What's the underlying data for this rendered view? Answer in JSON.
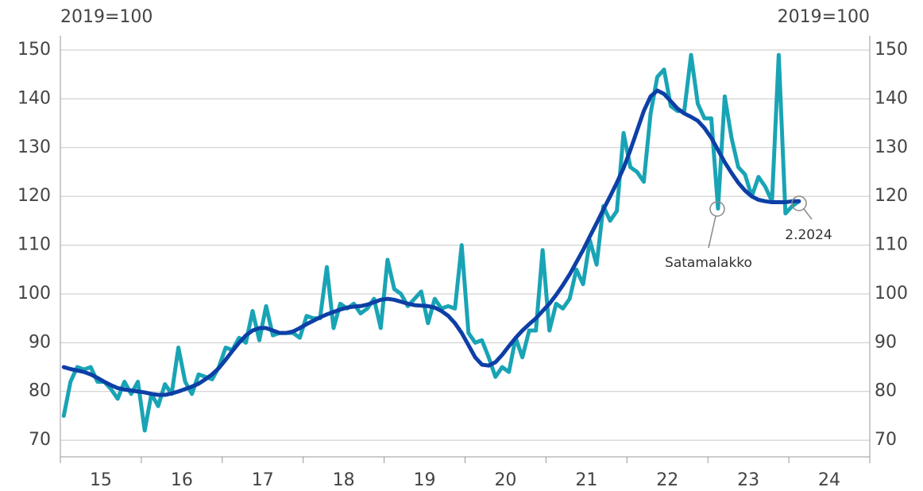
{
  "chart_data": {
    "type": "line",
    "y_axis_label": "2019=100",
    "y2_axis_label": "2019=100",
    "x": [
      15.042,
      15.125,
      15.208,
      15.292,
      15.375,
      15.458,
      15.542,
      15.625,
      15.708,
      15.792,
      15.875,
      15.958,
      16.042,
      16.125,
      16.208,
      16.292,
      16.375,
      16.458,
      16.542,
      16.625,
      16.708,
      16.792,
      16.875,
      16.958,
      17.042,
      17.125,
      17.208,
      17.292,
      17.375,
      17.458,
      17.542,
      17.625,
      17.708,
      17.792,
      17.875,
      17.958,
      18.042,
      18.125,
      18.208,
      18.292,
      18.375,
      18.458,
      18.542,
      18.625,
      18.708,
      18.792,
      18.875,
      18.958,
      19.042,
      19.125,
      19.208,
      19.292,
      19.375,
      19.458,
      19.542,
      19.625,
      19.708,
      19.792,
      19.875,
      19.958,
      20.042,
      20.125,
      20.208,
      20.292,
      20.375,
      20.458,
      20.542,
      20.625,
      20.708,
      20.792,
      20.875,
      20.958,
      21.042,
      21.125,
      21.208,
      21.292,
      21.375,
      21.458,
      21.542,
      21.625,
      21.708,
      21.792,
      21.875,
      21.958,
      22.042,
      22.125,
      22.208,
      22.292,
      22.375,
      22.458,
      22.542,
      22.625,
      22.708,
      22.792,
      22.875,
      22.958,
      23.042,
      23.125,
      23.208,
      23.292,
      23.375,
      23.458,
      23.542,
      23.625,
      23.708,
      23.792,
      23.875,
      23.958,
      24.042,
      24.125
    ],
    "series": [
      {
        "color": "#19a4b5",
        "values": [
          75,
          82,
          85,
          84.5,
          85,
          82,
          82,
          80.5,
          78.5,
          82,
          79.5,
          82,
          72,
          79.5,
          77,
          81.5,
          79.5,
          89,
          82,
          79.5,
          83.5,
          83,
          82.5,
          85,
          89,
          88.5,
          91,
          90,
          96.5,
          90.5,
          97.5,
          91.5,
          92,
          92,
          92,
          91,
          95.5,
          95,
          95,
          105.5,
          93,
          98,
          97,
          98,
          96,
          97,
          99,
          93,
          107,
          101,
          100,
          97.5,
          99,
          100.5,
          94,
          99,
          97,
          97.5,
          97,
          110,
          92,
          90,
          90.5,
          87,
          83,
          85,
          84,
          91,
          87,
          92.5,
          92.5,
          109,
          92.5,
          98,
          97,
          99,
          105,
          102,
          111,
          106,
          118,
          115,
          117,
          133,
          126,
          125,
          123,
          137,
          144.5,
          146,
          138.5,
          137.5,
          137.5,
          149,
          139,
          136,
          136,
          117.5,
          140.5,
          132,
          126,
          124.5,
          120,
          124,
          122,
          119,
          149,
          116.5,
          118,
          119
        ]
      },
      {
        "color": "#0d3fa6",
        "values": [
          85,
          84.6,
          84.3,
          84,
          83.5,
          82.8,
          82,
          81.3,
          80.7,
          80.4,
          80.2,
          80,
          79.8,
          79.5,
          79.3,
          79.3,
          79.6,
          80,
          80.5,
          81,
          81.6,
          82.5,
          83.5,
          84.8,
          86.5,
          88.3,
          90,
          91.5,
          92.5,
          93,
          93,
          92.5,
          92,
          92,
          92.3,
          93,
          93.8,
          94.5,
          95.2,
          95.8,
          96.3,
          96.8,
          97.2,
          97.4,
          97.5,
          97.8,
          98.3,
          98.8,
          99,
          98.8,
          98.4,
          98,
          97.7,
          97.6,
          97.5,
          97.2,
          96.5,
          95.5,
          94,
          92,
          89.5,
          87,
          85.5,
          85.3,
          86,
          87.5,
          89.3,
          91,
          92.5,
          93.8,
          95,
          96.5,
          98,
          99.8,
          101.8,
          104,
          106.5,
          109,
          111.8,
          114.5,
          117.3,
          120,
          122.8,
          125.8,
          129.5,
          133.5,
          137.5,
          140.5,
          141.7,
          141,
          139.5,
          138,
          137,
          136.3,
          135.5,
          134,
          132,
          129.5,
          127,
          124.8,
          122.8,
          121.2,
          120,
          119.3,
          119,
          118.8,
          118.8,
          118.8,
          119,
          119
        ]
      }
    ],
    "xlim": [
      15,
      25
    ],
    "xticks": [
      {
        "value": 15.5,
        "label": "15"
      },
      {
        "value": 16.5,
        "label": "16"
      },
      {
        "value": 17.5,
        "label": "17"
      },
      {
        "value": 18.5,
        "label": "18"
      },
      {
        "value": 19.5,
        "label": "19"
      },
      {
        "value": 20.5,
        "label": "20"
      },
      {
        "value": 21.5,
        "label": "21"
      },
      {
        "value": 22.5,
        "label": "22"
      },
      {
        "value": 23.5,
        "label": "23"
      },
      {
        "value": 24.5,
        "label": "24"
      }
    ],
    "ylim": [
      66.6,
      150
    ],
    "yticks": [
      70,
      80,
      90,
      100,
      110,
      120,
      130,
      140,
      150
    ],
    "y2lim": [
      66.6,
      150
    ],
    "y2ticks": [
      70,
      80,
      90,
      100,
      110,
      120,
      130,
      140,
      150
    ],
    "grid": true,
    "annotations": [
      "Satamalakko",
      "2.2024"
    ]
  }
}
